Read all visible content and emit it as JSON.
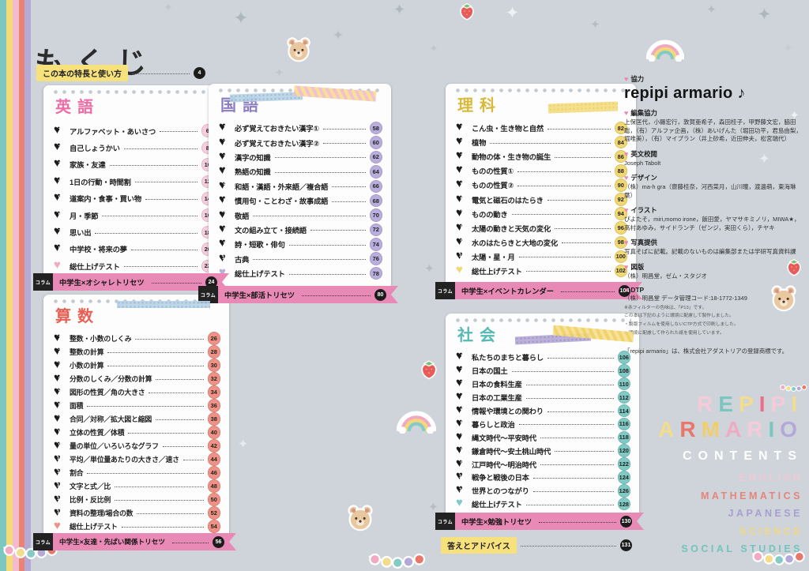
{
  "page": {
    "title": "もくじ",
    "intro": {
      "label": "この本の特長と使い方",
      "page": "4"
    }
  },
  "sections": [
    {
      "id": "english",
      "title": "英語",
      "accent": "#ef6ba4",
      "circle": "#f6cede",
      "heart": "#f2a9c6",
      "items": [
        {
          "num": "1",
          "label": "アルファベット・あいさつ",
          "page": "6"
        },
        {
          "num": "2",
          "label": "自己しょうかい",
          "page": "8"
        },
        {
          "num": "3",
          "label": "家族・友達",
          "page": "10"
        },
        {
          "num": "4",
          "label": "1日の行動・時間割",
          "page": "12"
        },
        {
          "num": "5",
          "label": "道案内・食事・買い物",
          "page": "14"
        },
        {
          "num": "6",
          "label": "月・季節",
          "page": "16"
        },
        {
          "num": "7",
          "label": "思い出",
          "page": "18"
        },
        {
          "num": "8",
          "label": "中学校・将来の夢",
          "page": "20"
        }
      ],
      "final": {
        "label": "総仕上げテスト",
        "page": "22"
      },
      "column": {
        "tag": "コラム",
        "label": "中学生×オシャレトリセツ",
        "page": "24"
      }
    },
    {
      "id": "japanese",
      "title": "国語",
      "accent": "#8d7ec1",
      "circle": "#b9aedd",
      "heart": "#b9aedd",
      "items": [
        {
          "num": "1",
          "label": "必ず覚えておきたい漢字①",
          "page": "58"
        },
        {
          "num": "2",
          "label": "必ず覚えておきたい漢字②",
          "page": "60"
        },
        {
          "num": "3",
          "label": "漢字の知識",
          "page": "62"
        },
        {
          "num": "4",
          "label": "熟語の知識",
          "page": "64"
        },
        {
          "num": "5",
          "label": "和語・漢語・外来語／複合語",
          "page": "66"
        },
        {
          "num": "6",
          "label": "慣用句・ことわざ・故事成語",
          "page": "68"
        },
        {
          "num": "7",
          "label": "敬語",
          "page": "70"
        },
        {
          "num": "8",
          "label": "文の組み立て・接続語",
          "page": "72"
        },
        {
          "num": "9",
          "label": "詩・短歌・俳句",
          "page": "74"
        },
        {
          "num": "10",
          "label": "古典",
          "page": "76"
        }
      ],
      "final": {
        "label": "総仕上げテスト",
        "page": "78"
      },
      "column": {
        "tag": "コラム",
        "label": "中学生×部活トリセツ",
        "page": "80"
      }
    },
    {
      "id": "math",
      "title": "算数",
      "accent": "#e95f52",
      "circle": "#f09186",
      "heart": "#f09186",
      "items": [
        {
          "num": "1",
          "label": "整数・小数のしくみ",
          "page": "26"
        },
        {
          "num": "2",
          "label": "整数の計算",
          "page": "28"
        },
        {
          "num": "3",
          "label": "小数の計算",
          "page": "30"
        },
        {
          "num": "4",
          "label": "分数のしくみ／分数の計算",
          "page": "32"
        },
        {
          "num": "5",
          "label": "図形の性質／角の大きさ",
          "page": "34"
        },
        {
          "num": "6",
          "label": "面積",
          "page": "36"
        },
        {
          "num": "7",
          "label": "合同／対称／拡大図と縮図",
          "page": "38"
        },
        {
          "num": "8",
          "label": "立体の性質／体積",
          "page": "40"
        },
        {
          "num": "9",
          "label": "量の単位／いろいろなグラフ",
          "page": "42"
        },
        {
          "num": "10",
          "label": "平均／単位量あたりの大きさ／速さ",
          "page": "44"
        },
        {
          "num": "11",
          "label": "割合",
          "page": "46"
        },
        {
          "num": "12",
          "label": "文字と式／比",
          "page": "48"
        },
        {
          "num": "13",
          "label": "比例・反比例",
          "page": "50"
        },
        {
          "num": "14",
          "label": "資料の整理/場合の数",
          "page": "52"
        }
      ],
      "final": {
        "label": "総仕上げテスト",
        "page": "54"
      },
      "column": {
        "tag": "コラム",
        "label": "中学生×友達・先ぱい関係トリセツ",
        "page": "56"
      }
    },
    {
      "id": "science",
      "title": "理科",
      "accent": "#d8b93a",
      "circle": "#f1d873",
      "heart": "#f1d873",
      "items": [
        {
          "num": "1",
          "label": "こん虫・生き物と自然",
          "page": "82"
        },
        {
          "num": "2",
          "label": "植物",
          "page": "84"
        },
        {
          "num": "3",
          "label": "動物の体・生き物の誕生",
          "page": "86"
        },
        {
          "num": "4",
          "label": "ものの性質①",
          "page": "88"
        },
        {
          "num": "5",
          "label": "ものの性質②",
          "page": "90"
        },
        {
          "num": "6",
          "label": "電気と磁石のはたらき",
          "page": "92"
        },
        {
          "num": "7",
          "label": "ものの動き",
          "page": "94"
        },
        {
          "num": "8",
          "label": "太陽の動きと天気の変化",
          "page": "96"
        },
        {
          "num": "9",
          "label": "水のはたらきと大地の変化",
          "page": "98"
        },
        {
          "num": "10",
          "label": "太陽・星・月",
          "page": "100"
        }
      ],
      "final": {
        "label": "総仕上げテスト",
        "page": "102"
      },
      "column": {
        "tag": "コラム",
        "label": "中学生×イベントカレンダー",
        "page": "104"
      }
    },
    {
      "id": "social",
      "title": "社会",
      "accent": "#54b8b3",
      "circle": "#7fcac5",
      "heart": "#7fcac5",
      "items": [
        {
          "num": "1",
          "label": "私たちのまちと暮らし",
          "page": "106"
        },
        {
          "num": "2",
          "label": "日本の国土",
          "page": "108"
        },
        {
          "num": "3",
          "label": "日本の食料生産",
          "page": "110"
        },
        {
          "num": "4",
          "label": "日本の工業生産",
          "page": "112"
        },
        {
          "num": "5",
          "label": "情報や環境との関わり",
          "page": "114"
        },
        {
          "num": "6",
          "label": "暮らしと政治",
          "page": "116"
        },
        {
          "num": "7",
          "label": "縄文時代～平安時代",
          "page": "118"
        },
        {
          "num": "8",
          "label": "鎌倉時代～安土桃山時代",
          "page": "120"
        },
        {
          "num": "9",
          "label": "江戸時代～明治時代",
          "page": "122"
        },
        {
          "num": "10",
          "label": "戦争と戦後の日本",
          "page": "124"
        },
        {
          "num": "11",
          "label": "世界とのつながり",
          "page": "126"
        }
      ],
      "final": {
        "label": "総仕上げテスト",
        "page": "128"
      },
      "column": {
        "tag": "コラム",
        "label": "中学生×勉強トリセツ",
        "page": "130"
      }
    }
  ],
  "answers": {
    "label": "答えとアドバイス",
    "page": "131"
  },
  "credits": {
    "cooperation_heading": "協力",
    "cooperation_name": "repipi armario ♪",
    "blocks": [
      {
        "heading": "編集協力",
        "body": "上保匡代，小縣宏行，敦賀亜希子，森田桂子，甲野藤文宏，脇田聡，（有）アルファ企画，（株）あいげんた（堀田功平，君島由梨，堀唯美），（有）マイプラン（井上砂希，近田伸夫，松宮瑞代）"
      },
      {
        "heading": "英文校閲",
        "body": "Joseph Tabolt"
      },
      {
        "heading": "デザイン",
        "body": "（株）ma-h gra（齋藤桂奈，河西菜月，山川瞳，渡邊萌，東海琳葉）"
      },
      {
        "heading": "イラスト",
        "body": "ぴよたそ，miri,momo irone，飯田愛，ヤマサキミノリ，MIWA★，高村あゆみ，サイドランチ（ゼンジ，実田くら），チヤキ"
      },
      {
        "heading": "写真提供",
        "body": "写真そばに記載。記載のないものは編集部または学研写真資料課"
      },
      {
        "heading": "図版",
        "body": "（株）明昌堂，ゼム・スタジオ"
      },
      {
        "heading": "DTP",
        "body": "（株）明昌堂 データ管理コード:18-1772-1349"
      }
    ],
    "notes": [
      {
        "t": "※赤フィルターの色味は、「P13」です。"
      },
      {
        "t": "この本は下記のように環境に配慮して製作しました。"
      },
      {
        "t": "・製版フィルムを使用しないCTP方式で印刷しました。"
      },
      {
        "t": "・環境に配慮して作られた紙を使用しています。"
      }
    ],
    "trademark": "「repipi armario」は、株式会社アダストリアの登録商標です。"
  },
  "branding": {
    "line1": [
      {
        "ch": "R",
        "color": "#f6cbd9"
      },
      {
        "ch": "E",
        "color": "#7ac7c1"
      },
      {
        "ch": "P",
        "color": "#f3dc8b"
      },
      {
        "ch": "I",
        "color": "#ee6d8a"
      },
      {
        "ch": "P",
        "color": "#f6cbd9"
      },
      {
        "ch": "I",
        "color": "#f3dc8b"
      }
    ],
    "line2": [
      {
        "ch": "A",
        "color": "#f3dc8b"
      },
      {
        "ch": "R",
        "color": "#e9766a"
      },
      {
        "ch": "M",
        "color": "#f0cf6b"
      },
      {
        "ch": "A",
        "color": "#f2a9c3"
      },
      {
        "ch": "R",
        "color": "#f6cbd9"
      },
      {
        "ch": "I",
        "color": "#7ac7c1"
      },
      {
        "ch": "O",
        "color": "#b3a8d8"
      }
    ],
    "contents_label": "CONTENTS",
    "subjects": [
      {
        "label": "ENGLISH",
        "color": "#eec9d6"
      },
      {
        "label": "MATHEMATICS",
        "color": "#e4857b"
      },
      {
        "label": "JAPANESE",
        "color": "#a89fd0"
      },
      {
        "label": "SCIENCE",
        "color": "#efd983"
      },
      {
        "label": "SOCIAL STUDIES",
        "color": "#74c4be"
      }
    ]
  },
  "decorations": {
    "star_icon": "four-point sparkle star",
    "bear_sticker": "bear face sticker",
    "strawberry_sticker": "strawberry sticker",
    "rainbow_sticker": "rainbow with clouds sticker",
    "garland_sticker": "pastel garland sticker",
    "tape_colors": [
      "#b9d3e6",
      "#f4bccd",
      "#f4dd84",
      "#b5aad6"
    ]
  }
}
